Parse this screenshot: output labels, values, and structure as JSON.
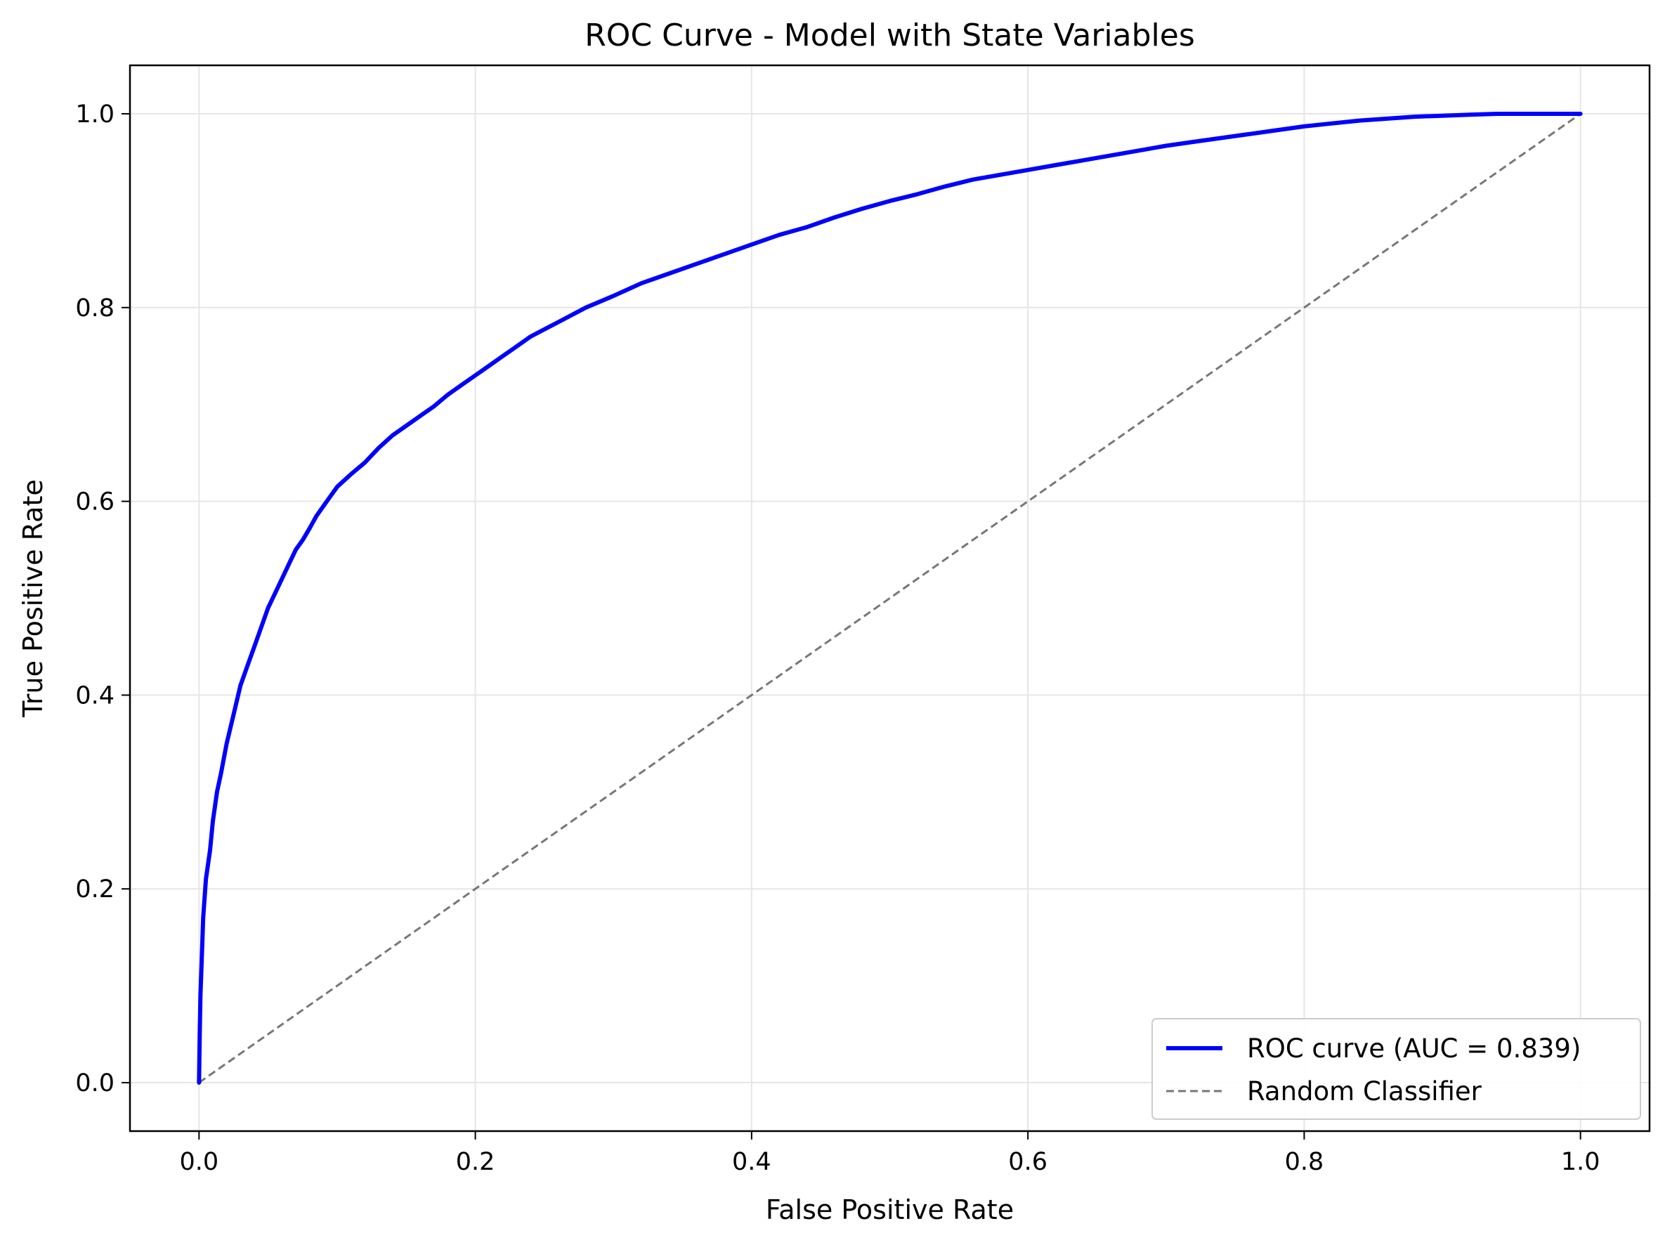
{
  "chart_data": {
    "type": "line",
    "title": "ROC Curve - Model with State Variables",
    "xlabel": "False Positive Rate",
    "ylabel": "True Positive Rate",
    "xlim": [
      -0.05,
      1.05
    ],
    "ylim": [
      -0.05,
      1.05
    ],
    "xticks": [
      "0.0",
      "0.2",
      "0.4",
      "0.6",
      "0.8",
      "1.0"
    ],
    "yticks": [
      "0.0",
      "0.2",
      "0.4",
      "0.6",
      "0.8",
      "1.0"
    ],
    "grid": true,
    "legend_position": "lower-right",
    "series": [
      {
        "name": "ROC curve (AUC = 0.839)",
        "color": "#0000ff",
        "style": "solid",
        "x": [
          0.0,
          0.0005,
          0.001,
          0.002,
          0.003,
          0.005,
          0.008,
          0.01,
          0.013,
          0.016,
          0.02,
          0.025,
          0.03,
          0.035,
          0.04,
          0.045,
          0.05,
          0.055,
          0.06,
          0.065,
          0.07,
          0.075,
          0.08,
          0.085,
          0.09,
          0.095,
          0.1,
          0.11,
          0.12,
          0.13,
          0.14,
          0.15,
          0.16,
          0.17,
          0.18,
          0.19,
          0.2,
          0.21,
          0.22,
          0.23,
          0.24,
          0.26,
          0.28,
          0.3,
          0.32,
          0.34,
          0.36,
          0.38,
          0.4,
          0.42,
          0.44,
          0.46,
          0.48,
          0.5,
          0.52,
          0.54,
          0.56,
          0.58,
          0.6,
          0.62,
          0.64,
          0.66,
          0.68,
          0.7,
          0.72,
          0.74,
          0.76,
          0.78,
          0.8,
          0.82,
          0.84,
          0.86,
          0.88,
          0.9,
          0.92,
          0.94,
          0.96,
          0.98,
          1.0
        ],
        "y": [
          0.0,
          0.05,
          0.09,
          0.13,
          0.17,
          0.21,
          0.24,
          0.27,
          0.3,
          0.32,
          0.35,
          0.38,
          0.41,
          0.43,
          0.45,
          0.47,
          0.49,
          0.505,
          0.52,
          0.535,
          0.55,
          0.56,
          0.572,
          0.585,
          0.595,
          0.605,
          0.615,
          0.628,
          0.64,
          0.655,
          0.668,
          0.678,
          0.688,
          0.698,
          0.71,
          0.72,
          0.73,
          0.74,
          0.75,
          0.76,
          0.77,
          0.785,
          0.8,
          0.812,
          0.825,
          0.835,
          0.845,
          0.855,
          0.865,
          0.875,
          0.883,
          0.893,
          0.902,
          0.91,
          0.917,
          0.925,
          0.932,
          0.937,
          0.942,
          0.947,
          0.952,
          0.957,
          0.962,
          0.967,
          0.971,
          0.975,
          0.979,
          0.983,
          0.987,
          0.99,
          0.993,
          0.995,
          0.997,
          0.998,
          0.999,
          1.0,
          1.0,
          1.0,
          1.0
        ]
      },
      {
        "name": "Random Classifier",
        "color": "#777777",
        "style": "dashed",
        "x": [
          0.0,
          1.0
        ],
        "y": [
          0.0,
          1.0
        ]
      }
    ]
  }
}
